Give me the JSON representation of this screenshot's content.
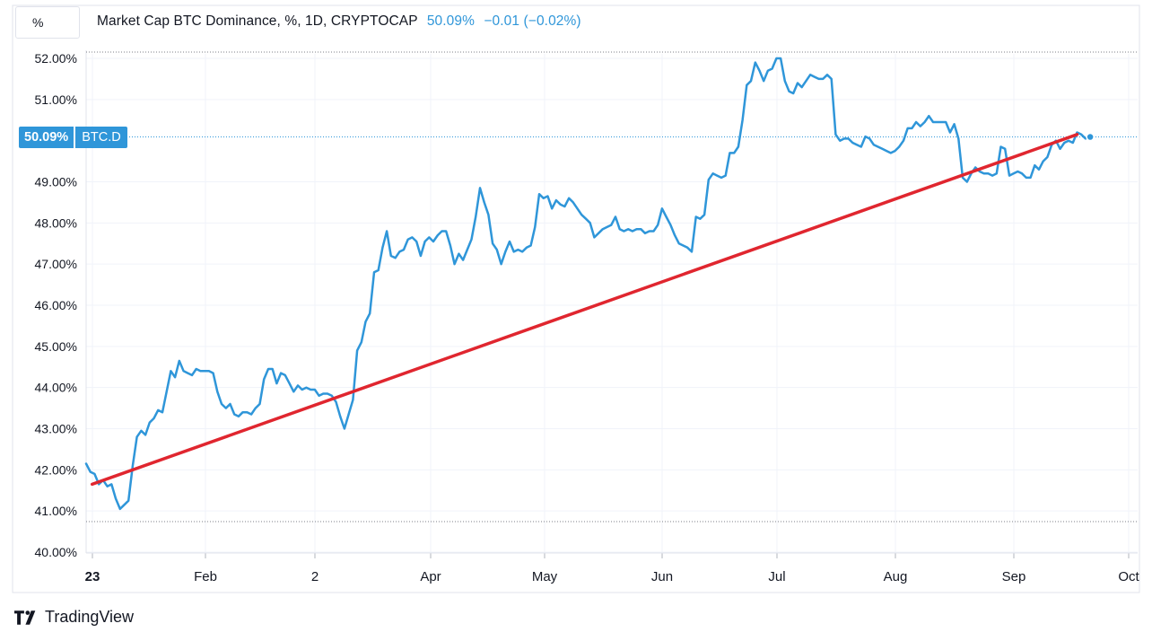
{
  "scale_toggle": {
    "label": "%"
  },
  "legend": {
    "title": "Market Cap BTC Dominance, %, 1D, CRYPTOCAP",
    "value": "50.09%",
    "change": "−0.01 (−0.02%)"
  },
  "price_badge": {
    "value": "50.09%",
    "symbol": "BTC.D"
  },
  "branding": {
    "name": "TradingView"
  },
  "colors": {
    "series": "#2f96d9",
    "trendline": "#e0262f",
    "grid": "#f0f3fa",
    "text": "#131722"
  },
  "chart_data": {
    "type": "line",
    "title": "Market Cap BTC Dominance, %, 1D, CRYPTOCAP",
    "xlabel": "",
    "ylabel": "",
    "ylim": [
      40,
      52
    ],
    "y_ticks": [
      "52.00%",
      "51.00%",
      "49.00%",
      "48.00%",
      "47.00%",
      "46.00%",
      "45.00%",
      "44.00%",
      "43.00%",
      "42.00%",
      "41.00%",
      "40.00%"
    ],
    "x_ticks": [
      "23",
      "Feb",
      "2",
      "Apr",
      "May",
      "Jun",
      "Jul",
      "Aug",
      "Sep",
      "Oct"
    ],
    "grid": true,
    "legend": "none",
    "x_start": "2023-01-01",
    "series": [
      {
        "name": "BTC.D",
        "color": "#2f96d9",
        "points": [
          [
            0,
            42.15
          ],
          [
            1,
            41.95
          ],
          [
            2,
            41.9
          ],
          [
            3,
            41.65
          ],
          [
            4,
            41.75
          ],
          [
            5,
            41.6
          ],
          [
            6,
            41.65
          ],
          [
            7,
            41.3
          ],
          [
            8,
            41.05
          ],
          [
            9,
            41.15
          ],
          [
            10,
            41.25
          ],
          [
            11,
            42.1
          ],
          [
            12,
            42.8
          ],
          [
            13,
            42.95
          ],
          [
            14,
            42.85
          ],
          [
            15,
            43.15
          ],
          [
            16,
            43.25
          ],
          [
            17,
            43.45
          ],
          [
            18,
            43.4
          ],
          [
            19,
            43.9
          ],
          [
            20,
            44.4
          ],
          [
            21,
            44.25
          ],
          [
            22,
            44.65
          ],
          [
            23,
            44.4
          ],
          [
            24,
            44.35
          ],
          [
            25,
            44.3
          ],
          [
            26,
            44.45
          ],
          [
            27,
            44.4
          ],
          [
            28,
            44.4
          ],
          [
            29,
            44.4
          ],
          [
            30,
            44.35
          ],
          [
            31,
            43.9
          ],
          [
            32,
            43.6
          ],
          [
            33,
            43.5
          ],
          [
            34,
            43.6
          ],
          [
            35,
            43.35
          ],
          [
            36,
            43.3
          ],
          [
            37,
            43.4
          ],
          [
            38,
            43.4
          ],
          [
            39,
            43.35
          ],
          [
            40,
            43.5
          ],
          [
            41,
            43.6
          ],
          [
            42,
            44.2
          ],
          [
            43,
            44.45
          ],
          [
            44,
            44.45
          ],
          [
            45,
            44.1
          ],
          [
            46,
            44.35
          ],
          [
            47,
            44.3
          ],
          [
            48,
            44.1
          ],
          [
            49,
            43.9
          ],
          [
            50,
            44.05
          ],
          [
            51,
            43.95
          ],
          [
            52,
            44.0
          ],
          [
            53,
            43.95
          ],
          [
            54,
            43.95
          ],
          [
            55,
            43.8
          ],
          [
            56,
            43.85
          ],
          [
            57,
            43.85
          ],
          [
            58,
            43.8
          ],
          [
            59,
            43.65
          ],
          [
            60,
            43.3
          ],
          [
            61,
            43.0
          ],
          [
            62,
            43.35
          ],
          [
            63,
            43.7
          ],
          [
            64,
            44.9
          ],
          [
            65,
            45.1
          ],
          [
            66,
            45.6
          ],
          [
            67,
            45.8
          ],
          [
            68,
            46.8
          ],
          [
            69,
            46.85
          ],
          [
            70,
            47.4
          ],
          [
            71,
            47.8
          ],
          [
            72,
            47.2
          ],
          [
            73,
            47.15
          ],
          [
            74,
            47.3
          ],
          [
            75,
            47.35
          ],
          [
            76,
            47.6
          ],
          [
            77,
            47.65
          ],
          [
            78,
            47.55
          ],
          [
            79,
            47.2
          ],
          [
            80,
            47.55
          ],
          [
            81,
            47.65
          ],
          [
            82,
            47.55
          ],
          [
            83,
            47.7
          ],
          [
            84,
            47.8
          ],
          [
            85,
            47.8
          ],
          [
            86,
            47.45
          ],
          [
            87,
            47.0
          ],
          [
            88,
            47.25
          ],
          [
            89,
            47.1
          ],
          [
            90,
            47.35
          ],
          [
            91,
            47.6
          ],
          [
            92,
            48.15
          ],
          [
            93,
            48.85
          ],
          [
            94,
            48.5
          ],
          [
            95,
            48.2
          ],
          [
            96,
            47.5
          ],
          [
            97,
            47.35
          ],
          [
            98,
            47.0
          ],
          [
            99,
            47.3
          ],
          [
            100,
            47.55
          ],
          [
            101,
            47.3
          ],
          [
            102,
            47.35
          ],
          [
            103,
            47.3
          ],
          [
            104,
            47.4
          ],
          [
            105,
            47.45
          ],
          [
            106,
            47.9
          ],
          [
            107,
            48.7
          ],
          [
            108,
            48.6
          ],
          [
            109,
            48.65
          ],
          [
            110,
            48.35
          ],
          [
            111,
            48.55
          ],
          [
            112,
            48.45
          ],
          [
            113,
            48.4
          ],
          [
            114,
            48.6
          ],
          [
            115,
            48.5
          ],
          [
            116,
            48.35
          ],
          [
            117,
            48.2
          ],
          [
            118,
            48.1
          ],
          [
            119,
            48.0
          ],
          [
            120,
            47.65
          ],
          [
            121,
            47.75
          ],
          [
            122,
            47.85
          ],
          [
            123,
            47.9
          ],
          [
            124,
            47.95
          ],
          [
            125,
            48.15
          ],
          [
            126,
            47.85
          ],
          [
            127,
            47.8
          ],
          [
            128,
            47.85
          ],
          [
            129,
            47.8
          ],
          [
            130,
            47.85
          ],
          [
            131,
            47.85
          ],
          [
            132,
            47.75
          ],
          [
            133,
            47.8
          ],
          [
            134,
            47.8
          ],
          [
            135,
            47.95
          ],
          [
            136,
            48.35
          ],
          [
            137,
            48.15
          ],
          [
            138,
            47.95
          ],
          [
            139,
            47.7
          ],
          [
            140,
            47.5
          ],
          [
            141,
            47.45
          ],
          [
            142,
            47.4
          ],
          [
            143,
            47.3
          ],
          [
            144,
            48.15
          ],
          [
            145,
            48.1
          ],
          [
            146,
            48.2
          ],
          [
            147,
            49.05
          ],
          [
            148,
            49.2
          ],
          [
            149,
            49.15
          ],
          [
            150,
            49.1
          ],
          [
            151,
            49.15
          ],
          [
            152,
            49.7
          ],
          [
            153,
            49.7
          ],
          [
            154,
            49.85
          ],
          [
            155,
            50.5
          ],
          [
            156,
            51.35
          ],
          [
            157,
            51.45
          ],
          [
            158,
            51.9
          ],
          [
            159,
            51.7
          ],
          [
            160,
            51.45
          ],
          [
            161,
            51.7
          ],
          [
            162,
            51.75
          ],
          [
            163,
            52.0
          ],
          [
            164,
            52.0
          ],
          [
            165,
            51.45
          ],
          [
            166,
            51.2
          ],
          [
            167,
            51.15
          ],
          [
            168,
            51.4
          ],
          [
            169,
            51.3
          ],
          [
            170,
            51.45
          ],
          [
            171,
            51.6
          ],
          [
            172,
            51.55
          ],
          [
            173,
            51.5
          ],
          [
            174,
            51.5
          ],
          [
            175,
            51.6
          ],
          [
            176,
            51.5
          ],
          [
            177,
            50.15
          ],
          [
            178,
            50.0
          ],
          [
            179,
            50.05
          ],
          [
            180,
            50.05
          ],
          [
            181,
            49.95
          ],
          [
            182,
            49.9
          ],
          [
            183,
            49.85
          ],
          [
            184,
            50.1
          ],
          [
            185,
            50.05
          ],
          [
            186,
            49.9
          ],
          [
            187,
            49.85
          ],
          [
            188,
            49.8
          ],
          [
            189,
            49.75
          ],
          [
            190,
            49.7
          ],
          [
            191,
            49.75
          ],
          [
            192,
            49.85
          ],
          [
            193,
            50.0
          ],
          [
            194,
            50.3
          ],
          [
            195,
            50.3
          ],
          [
            196,
            50.45
          ],
          [
            197,
            50.35
          ],
          [
            198,
            50.45
          ],
          [
            199,
            50.6
          ],
          [
            200,
            50.45
          ],
          [
            201,
            50.45
          ],
          [
            202,
            50.45
          ],
          [
            203,
            50.45
          ],
          [
            204,
            50.2
          ],
          [
            205,
            50.4
          ],
          [
            206,
            50.05
          ],
          [
            207,
            49.1
          ],
          [
            208,
            49.0
          ],
          [
            209,
            49.2
          ],
          [
            210,
            49.35
          ],
          [
            211,
            49.25
          ],
          [
            212,
            49.2
          ],
          [
            213,
            49.2
          ],
          [
            214,
            49.15
          ],
          [
            215,
            49.2
          ],
          [
            216,
            49.85
          ],
          [
            217,
            49.8
          ],
          [
            218,
            49.15
          ],
          [
            219,
            49.2
          ],
          [
            220,
            49.25
          ],
          [
            221,
            49.2
          ],
          [
            222,
            49.1
          ],
          [
            223,
            49.1
          ],
          [
            224,
            49.4
          ],
          [
            225,
            49.3
          ],
          [
            226,
            49.5
          ],
          [
            227,
            49.6
          ],
          [
            228,
            49.9
          ],
          [
            229,
            50.0
          ],
          [
            230,
            49.8
          ],
          [
            231,
            49.95
          ],
          [
            232,
            50.0
          ],
          [
            233,
            49.95
          ],
          [
            234,
            50.2
          ],
          [
            235,
            50.15
          ],
          [
            236,
            50.05
          ],
          [
            237,
            50.09
          ]
        ]
      },
      {
        "name": "trendline",
        "color": "#e0262f",
        "points": [
          [
            1,
            41.65
          ],
          [
            234,
            50.15
          ]
        ]
      }
    ]
  }
}
